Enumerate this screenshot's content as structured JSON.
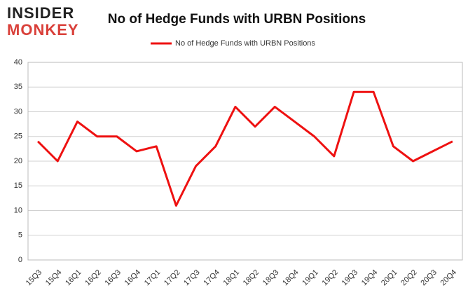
{
  "logo": {
    "top": "INSIDER",
    "bottom": "MONKEY"
  },
  "chart_data": {
    "type": "line",
    "title": "No of Hedge Funds with URBN Positions",
    "categories": [
      "15Q3",
      "15Q4",
      "16Q1",
      "16Q2",
      "16Q3",
      "16Q4",
      "17Q1",
      "17Q2",
      "17Q3",
      "17Q4",
      "18Q1",
      "18Q2",
      "18Q3",
      "18Q4",
      "19Q1",
      "19Q2",
      "19Q3",
      "19Q4",
      "20Q1",
      "20Q2",
      "20Q3",
      "20Q4"
    ],
    "series": [
      {
        "name": "No of Hedge Funds with URBN Positions",
        "color": "#ee1111",
        "values": [
          24,
          20,
          28,
          25,
          25,
          22,
          23,
          11,
          19,
          23,
          31,
          27,
          31,
          28,
          25,
          21,
          34,
          34,
          23,
          20,
          22,
          24
        ]
      }
    ],
    "ylim": [
      0,
      40
    ],
    "yticks": [
      0,
      5,
      10,
      15,
      20,
      25,
      30,
      35,
      40
    ],
    "grid": true,
    "legend": "top"
  }
}
